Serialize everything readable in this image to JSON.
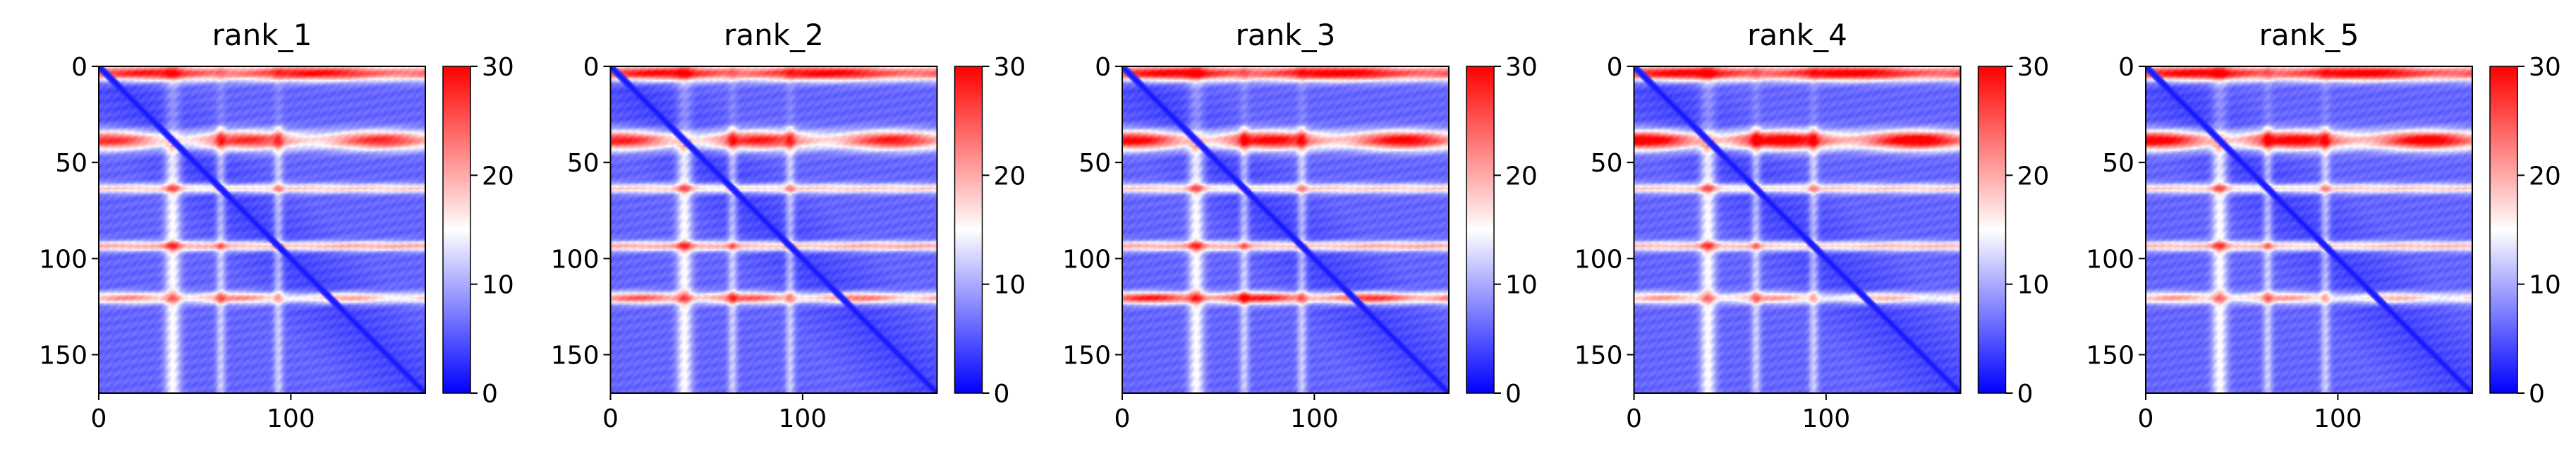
{
  "figure": {
    "background": "#ffffff",
    "colormap": {
      "name": "bwr",
      "low": "#0000ff",
      "mid": "#ffffff",
      "high": "#ff0000"
    }
  },
  "chart_data": [
    {
      "type": "heatmap",
      "title": "rank_1",
      "size": 170,
      "xlim": [
        0,
        170
      ],
      "ylim": [
        170,
        0
      ],
      "vlim": [
        0,
        30
      ],
      "xticks": [
        0,
        100
      ],
      "yticks": [
        0,
        50,
        100,
        150
      ],
      "cbar_ticks": [
        0,
        10,
        20,
        30
      ],
      "bands": {
        "top": 24,
        "mid": 22,
        "b63": 12,
        "b93": 14,
        "b120": 16
      }
    },
    {
      "type": "heatmap",
      "title": "rank_2",
      "size": 170,
      "xlim": [
        0,
        170
      ],
      "ylim": [
        170,
        0
      ],
      "vlim": [
        0,
        30
      ],
      "xticks": [
        0,
        100
      ],
      "yticks": [
        0,
        50,
        100,
        150
      ],
      "cbar_ticks": [
        0,
        10,
        20,
        30
      ],
      "bands": {
        "top": 25,
        "mid": 23,
        "b63": 12,
        "b93": 14,
        "b120": 19
      }
    },
    {
      "type": "heatmap",
      "title": "rank_3",
      "size": 170,
      "xlim": [
        0,
        170
      ],
      "ylim": [
        170,
        0
      ],
      "vlim": [
        0,
        30
      ],
      "xticks": [
        0,
        100
      ],
      "yticks": [
        0,
        50,
        100,
        150
      ],
      "cbar_ticks": [
        0,
        10,
        20,
        30
      ],
      "bands": {
        "top": 26,
        "mid": 25,
        "b63": 12,
        "b93": 14,
        "b120": 23
      }
    },
    {
      "type": "heatmap",
      "title": "rank_4",
      "size": 170,
      "xlim": [
        0,
        170
      ],
      "ylim": [
        170,
        0
      ],
      "vlim": [
        0,
        30
      ],
      "xticks": [
        0,
        100
      ],
      "yticks": [
        0,
        50,
        100,
        150
      ],
      "cbar_ticks": [
        0,
        10,
        20,
        30
      ],
      "bands": {
        "top": 26,
        "mid": 27,
        "b63": 12,
        "b93": 13,
        "b120": 15
      }
    },
    {
      "type": "heatmap",
      "title": "rank_5",
      "size": 170,
      "xlim": [
        0,
        170
      ],
      "ylim": [
        170,
        0
      ],
      "vlim": [
        0,
        30
      ],
      "xticks": [
        0,
        100
      ],
      "yticks": [
        0,
        50,
        100,
        150
      ],
      "cbar_ticks": [
        0,
        10,
        20,
        30
      ],
      "bands": {
        "top": 26,
        "mid": 26,
        "b63": 12,
        "b93": 13,
        "b120": 15
      }
    }
  ]
}
